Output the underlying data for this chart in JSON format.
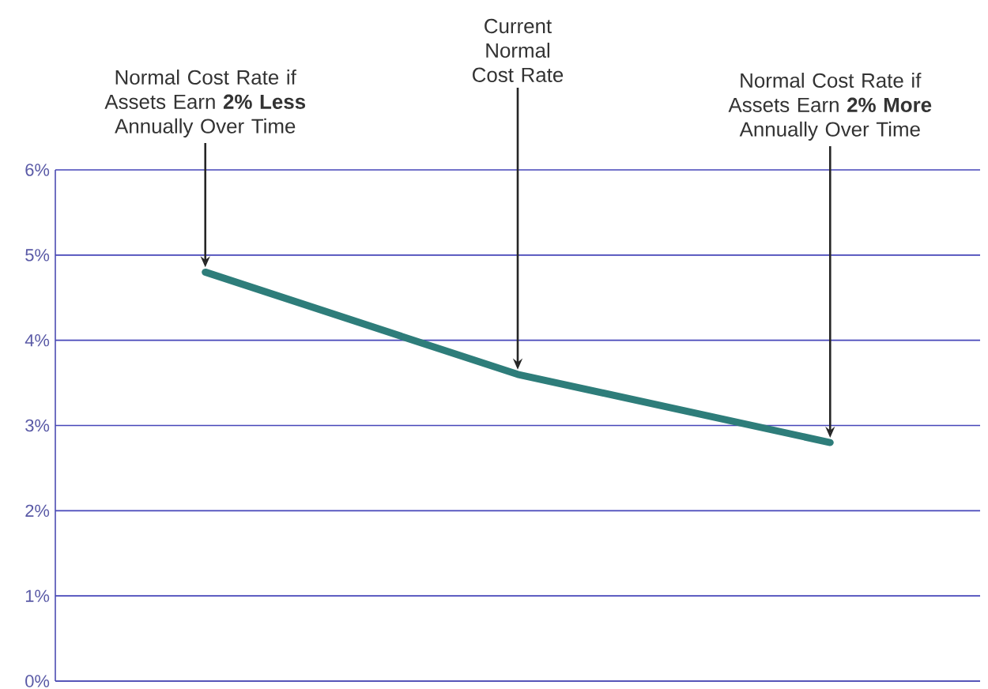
{
  "chart_data": {
    "type": "line",
    "categories": [
      null,
      null,
      null
    ],
    "series": [
      {
        "color": "#2e7d7a",
        "values": [
          4.8,
          3.6,
          2.8
        ]
      }
    ],
    "ylim": [
      0,
      6
    ],
    "yticks": [
      {
        "value": 0,
        "label": "0%"
      },
      {
        "value": 1,
        "label": "1%"
      },
      {
        "value": 2,
        "label": "2%"
      },
      {
        "value": 3,
        "label": "3%"
      },
      {
        "value": 4,
        "label": "4%"
      },
      {
        "value": 5,
        "label": "5%"
      },
      {
        "value": 6,
        "label": "6%"
      }
    ],
    "grid": "y",
    "marker": "none",
    "line_style": "solid",
    "annotations": [
      "Normal Cost Rate if Assets Earn **2% Less** Annually Over Time",
      "Current Normal Cost Rate",
      "Normal Cost Rate if Assets Earn **2% More** Annually Over Time"
    ]
  }
}
